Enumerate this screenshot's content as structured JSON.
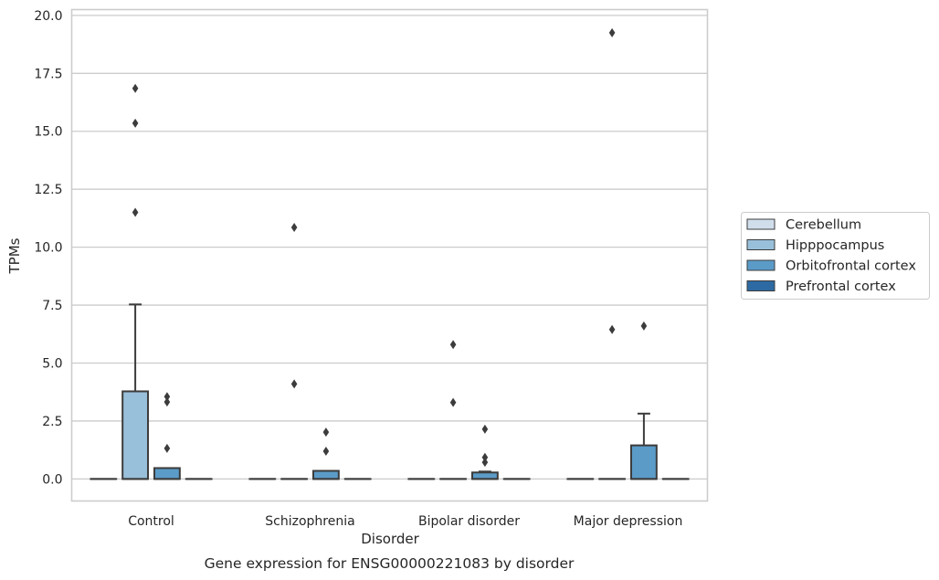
{
  "chart_data": {
    "type": "box",
    "title": "",
    "caption": "Gene expression for ENSG00000221083 by disorder",
    "xlabel": "Disorder",
    "ylabel": "TPMs",
    "ylim": [
      -0.95,
      20.25
    ],
    "yticks": [
      "0.0",
      "2.5",
      "5.0",
      "7.5",
      "10.0",
      "12.5",
      "15.0",
      "17.5",
      "20.0"
    ],
    "categories": [
      "Control",
      "Schizophrenia",
      "Bipolar disorder",
      "Major depression"
    ],
    "grid": "horizontal",
    "legend_position": "right",
    "series": [
      {
        "name": "Cerebellum",
        "color": "#d0deec",
        "boxes": [
          {
            "q1": 0,
            "median": 0,
            "q3": 0,
            "whislo": 0,
            "whishi": 0,
            "fliers": []
          },
          {
            "q1": 0,
            "median": 0,
            "q3": 0,
            "whislo": 0,
            "whishi": 0,
            "fliers": []
          },
          {
            "q1": 0,
            "median": 0,
            "q3": 0,
            "whislo": 0,
            "whishi": 0,
            "fliers": []
          },
          {
            "q1": 0,
            "median": 0,
            "q3": 0,
            "whislo": 0,
            "whishi": 0,
            "fliers": []
          }
        ]
      },
      {
        "name": "Hipppocampus",
        "color": "#99c0da",
        "boxes": [
          {
            "q1": 0,
            "median": 0,
            "q3": 3.78,
            "whislo": 0,
            "whishi": 7.53,
            "fliers": [
              11.5,
              15.35,
              16.85
            ]
          },
          {
            "q1": 0,
            "median": 0,
            "q3": 0,
            "whislo": 0,
            "whishi": 0,
            "fliers": [
              4.1,
              10.85
            ]
          },
          {
            "q1": 0,
            "median": 0,
            "q3": 0,
            "whislo": 0,
            "whishi": 0,
            "fliers": [
              3.3,
              5.8
            ]
          },
          {
            "q1": 0,
            "median": 0,
            "q3": 0,
            "whislo": 0,
            "whishi": 0,
            "fliers": [
              6.45,
              19.25
            ]
          }
        ]
      },
      {
        "name": "Orbitofrontal cortex",
        "color": "#5b9bc8",
        "boxes": [
          {
            "q1": 0,
            "median": 0,
            "q3": 0.47,
            "whislo": 0,
            "whishi": 0.47,
            "fliers": [
              1.32,
              3.32,
              3.55
            ]
          },
          {
            "q1": 0,
            "median": 0,
            "q3": 0.35,
            "whislo": 0,
            "whishi": 0.35,
            "fliers": [
              1.2,
              2.02
            ]
          },
          {
            "q1": 0,
            "median": 0,
            "q3": 0.28,
            "whislo": 0,
            "whishi": 0.32,
            "fliers": [
              0.72,
              0.93,
              2.15
            ]
          },
          {
            "q1": 0,
            "median": 0,
            "q3": 1.45,
            "whislo": 0,
            "whishi": 2.82,
            "fliers": [
              6.6
            ]
          }
        ]
      },
      {
        "name": "Prefrontal cortex",
        "color": "#2d6aa3",
        "boxes": [
          {
            "q1": 0,
            "median": 0,
            "q3": 0,
            "whislo": 0,
            "whishi": 0,
            "fliers": []
          },
          {
            "q1": 0,
            "median": 0,
            "q3": 0,
            "whislo": 0,
            "whishi": 0,
            "fliers": []
          },
          {
            "q1": 0,
            "median": 0,
            "q3": 0,
            "whislo": 0,
            "whishi": 0,
            "fliers": []
          },
          {
            "q1": 0,
            "median": 0,
            "q3": 0,
            "whislo": 0,
            "whishi": 0,
            "fliers": []
          }
        ]
      }
    ]
  }
}
